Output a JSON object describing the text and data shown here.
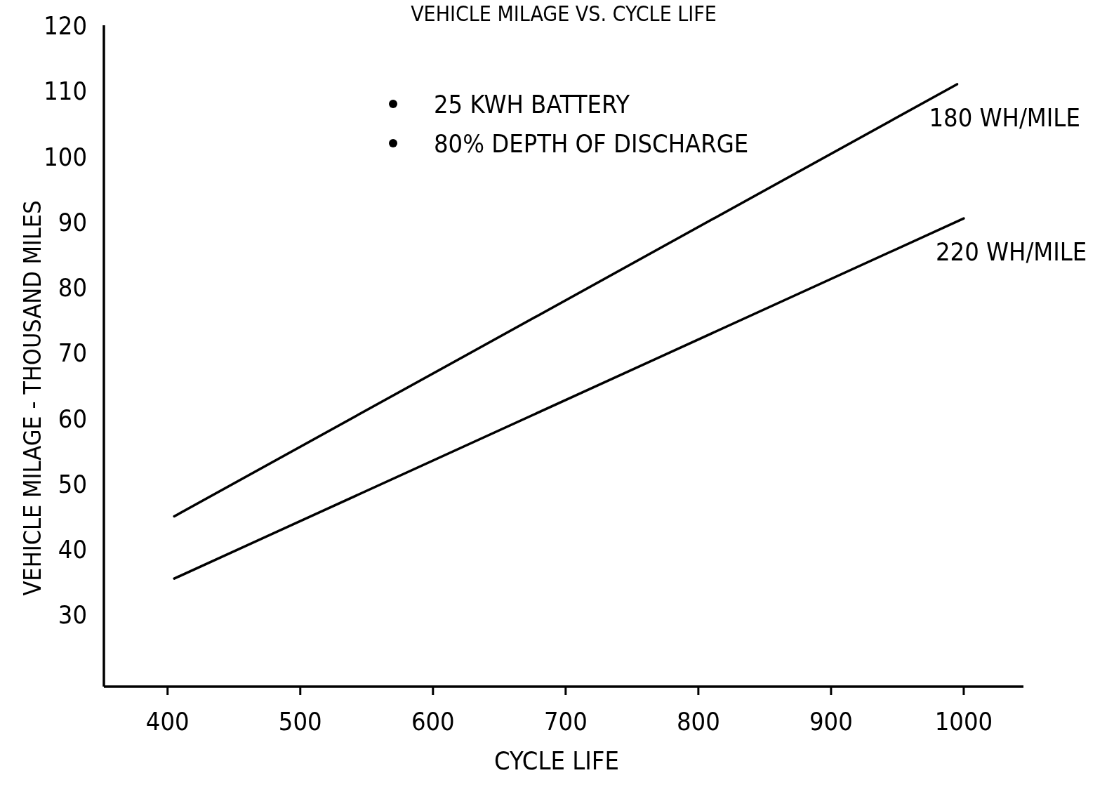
{
  "chart_data": {
    "type": "line",
    "title": "VEHICLE MILAGE VS. CYCLE LIFE",
    "xlabel": "CYCLE LIFE",
    "ylabel": "VEHICLE MILAGE - THOUSAND MILES",
    "series": [
      {
        "name": "180 WH/MILE",
        "color": "#000000",
        "x": [
          405,
          995
        ],
        "values": [
          45,
          111
        ]
      },
      {
        "name": "220 WH/MILE",
        "color": "#000000",
        "x": [
          405,
          1000
        ],
        "values": [
          35.5,
          90.5
        ]
      }
    ],
    "xlim": [
      352,
      1045
    ],
    "ylim": [
      19,
      120
    ],
    "xticks": [
      400,
      500,
      600,
      700,
      800,
      900,
      1000
    ],
    "yticks": [
      30,
      40,
      50,
      60,
      70,
      80,
      90,
      100,
      110,
      120
    ],
    "annotations": [
      "25 KWH BATTERY",
      "80% DEPTH OF DISCHARGE"
    ],
    "grid": false,
    "marker": "none",
    "line_style": "solid"
  }
}
